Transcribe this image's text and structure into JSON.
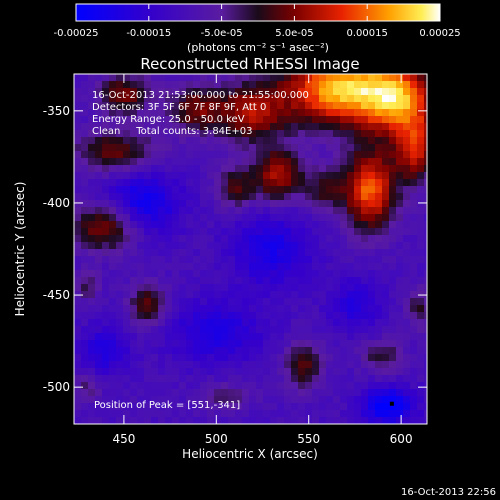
{
  "chart_data": {
    "type": "heatmap",
    "title": "Reconstructed RHESSI Image",
    "xlabel": "Heliocentric X (arcsec)",
    "ylabel": "Heliocentric Y (arcsec)",
    "xlim": [
      423,
      614
    ],
    "ylim": [
      -520,
      -330
    ],
    "x_ticks": [
      450,
      500,
      550,
      600
    ],
    "y_ticks": [
      -350,
      -400,
      -450,
      -500
    ],
    "colorbar": {
      "label": "(photons cm⁻² s⁻¹ asec⁻²)",
      "range": [
        -0.00025,
        0.00025
      ],
      "ticks": [
        "-0.00025",
        "-0.00015",
        "-5.0e-05",
        "5.0e-05",
        "0.00015",
        "0.00025"
      ],
      "tick_values": [
        -0.00025,
        -0.00015,
        -5e-05,
        5e-05,
        0.00015,
        0.00025
      ]
    },
    "annotations": [
      "16-Oct-2013 21:53:00.000 to 21:55:00.000",
      "Detectors: 3F 5F 6F 7F 8F 9F, Att 0",
      "Energy Range: 25.0 - 50.0 keV",
      "Clean     Total counts: 3.84E+03"
    ],
    "peak_label": "Position of Peak = [551,-341]",
    "peak": [
      551,
      -341
    ],
    "marker": [
      595,
      -509
    ],
    "hot_regions": [
      {
        "x": 568,
        "y": -338,
        "sx": 22,
        "sy": 14,
        "a": 1.35
      },
      {
        "x": 600,
        "y": -345,
        "sx": 14,
        "sy": 14,
        "a": 0.95
      },
      {
        "x": 518,
        "y": -351,
        "sx": 14,
        "sy": 11,
        "a": 0.75
      },
      {
        "x": 488,
        "y": -349,
        "sx": 10,
        "sy": 9,
        "a": 0.6
      },
      {
        "x": 450,
        "y": -341,
        "sx": 10,
        "sy": 8,
        "a": 0.65
      },
      {
        "x": 445,
        "y": -372,
        "sx": 16,
        "sy": 8,
        "a": 0.6
      },
      {
        "x": 583,
        "y": -393,
        "sx": 10,
        "sy": 15,
        "a": 1.1
      },
      {
        "x": 608,
        "y": -372,
        "sx": 8,
        "sy": 12,
        "a": 0.8
      },
      {
        "x": 533,
        "y": -385,
        "sx": 10,
        "sy": 10,
        "a": 0.8
      },
      {
        "x": 510,
        "y": -392,
        "sx": 7,
        "sy": 8,
        "a": 0.5
      },
      {
        "x": 558,
        "y": -393,
        "sx": 7,
        "sy": 8,
        "a": 0.45
      },
      {
        "x": 440,
        "y": -413,
        "sx": 12,
        "sy": 9,
        "a": 0.75
      },
      {
        "x": 463,
        "y": -455,
        "sx": 7,
        "sy": 8,
        "a": 0.6
      },
      {
        "x": 547,
        "y": -488,
        "sx": 7,
        "sy": 9,
        "a": 0.6
      },
      {
        "x": 590,
        "y": -483,
        "sx": 8,
        "sy": 6,
        "a": 0.45
      },
      {
        "x": 610,
        "y": -457,
        "sx": 5,
        "sy": 8,
        "a": 0.4
      },
      {
        "x": 430,
        "y": -445,
        "sx": 5,
        "sy": 6,
        "a": 0.35
      },
      {
        "x": 430,
        "y": -500,
        "sx": 5,
        "sy": 6,
        "a": 0.3
      },
      {
        "x": 505,
        "y": -505,
        "sx": 10,
        "sy": 5,
        "a": 0.3
      }
    ],
    "cold_regions": [
      {
        "x": 460,
        "y": -400,
        "sx": 14,
        "sy": 12,
        "a": 0.55
      },
      {
        "x": 530,
        "y": -425,
        "sx": 15,
        "sy": 14,
        "a": 0.45
      },
      {
        "x": 500,
        "y": -470,
        "sx": 18,
        "sy": 12,
        "a": 0.4
      },
      {
        "x": 593,
        "y": -510,
        "sx": 10,
        "sy": 7,
        "a": 0.7
      },
      {
        "x": 575,
        "y": -455,
        "sx": 10,
        "sy": 10,
        "a": 0.35
      },
      {
        "x": 440,
        "y": -480,
        "sx": 9,
        "sy": 9,
        "a": 0.4
      }
    ]
  },
  "footer": {
    "timestamp": "16-Oct-2013 22:56"
  }
}
